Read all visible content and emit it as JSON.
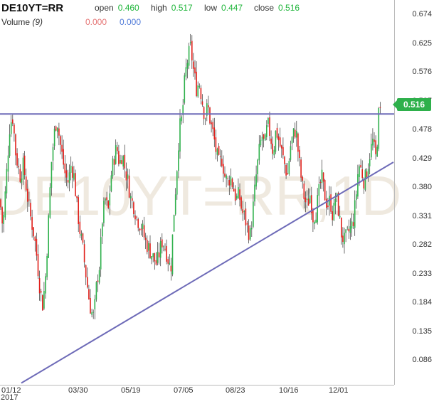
{
  "header": {
    "ticker": "DE10YT=RR",
    "open_label": "open",
    "open_value": "0.460",
    "high_label": "high",
    "high_value": "0.517",
    "low_label": "low",
    "low_value": "0.447",
    "close_label": "close",
    "close_value": "0.516"
  },
  "volume": {
    "label": "Volume",
    "period": "(9)",
    "value_a": "0.000",
    "value_b": "0.000"
  },
  "watermark": "DE10YT=RR,1D",
  "current_price_tag": "0.516",
  "colors": {
    "up": "#2eb04b",
    "down": "#e0201b",
    "trendline": "#6e6bb8",
    "watermark": "#efe9df"
  },
  "chart_data": {
    "type": "candlestick",
    "title": "DE10YT=RR",
    "y_ticks": [
      "0.674",
      "0.625",
      "0.576",
      "0.527",
      "0.478",
      "0.429",
      "0.380",
      "0.331",
      "0.282",
      "0.233",
      "0.184",
      "0.135",
      "0.086"
    ],
    "x_ticks": [
      "01/12",
      "03/30",
      "05/19",
      "07/05",
      "08/23",
      "10/16",
      "12/01"
    ],
    "x_sub_label": "2017",
    "ylim": [
      0.045,
      0.7
    ],
    "grid": false,
    "ohlc": {
      "open": 0.46,
      "high": 0.517,
      "low": 0.447,
      "close": 0.516
    },
    "price_path": [
      [
        0,
        0.36
      ],
      [
        4,
        0.31
      ],
      [
        9,
        0.4
      ],
      [
        14,
        0.49
      ],
      [
        18,
        0.5
      ],
      [
        22,
        0.44
      ],
      [
        28,
        0.4
      ],
      [
        33,
        0.42
      ],
      [
        38,
        0.37
      ],
      [
        43,
        0.33
      ],
      [
        48,
        0.3
      ],
      [
        52,
        0.26
      ],
      [
        56,
        0.21
      ],
      [
        60,
        0.18
      ],
      [
        64,
        0.23
      ],
      [
        68,
        0.32
      ],
      [
        72,
        0.42
      ],
      [
        76,
        0.47
      ],
      [
        80,
        0.5
      ],
      [
        84,
        0.46
      ],
      [
        88,
        0.43
      ],
      [
        92,
        0.4
      ],
      [
        96,
        0.39
      ],
      [
        100,
        0.42
      ],
      [
        104,
        0.4
      ],
      [
        108,
        0.35
      ],
      [
        112,
        0.31
      ],
      [
        116,
        0.28
      ],
      [
        120,
        0.24
      ],
      [
        124,
        0.2
      ],
      [
        128,
        0.17
      ],
      [
        132,
        0.16
      ],
      [
        136,
        0.22
      ],
      [
        140,
        0.25
      ],
      [
        144,
        0.33
      ],
      [
        148,
        0.36
      ],
      [
        152,
        0.34
      ],
      [
        156,
        0.4
      ],
      [
        160,
        0.43
      ],
      [
        164,
        0.45
      ],
      [
        168,
        0.42
      ],
      [
        172,
        0.44
      ],
      [
        176,
        0.41
      ],
      [
        180,
        0.39
      ],
      [
        184,
        0.36
      ],
      [
        188,
        0.35
      ],
      [
        192,
        0.33
      ],
      [
        196,
        0.32
      ],
      [
        200,
        0.31
      ],
      [
        204,
        0.29
      ],
      [
        208,
        0.28
      ],
      [
        212,
        0.27
      ],
      [
        216,
        0.26
      ],
      [
        220,
        0.25
      ],
      [
        224,
        0.27
      ],
      [
        228,
        0.29
      ],
      [
        232,
        0.28
      ],
      [
        236,
        0.26
      ],
      [
        240,
        0.24
      ],
      [
        244,
        0.33
      ],
      [
        248,
        0.4
      ],
      [
        252,
        0.48
      ],
      [
        256,
        0.5
      ],
      [
        260,
        0.57
      ],
      [
        264,
        0.6
      ],
      [
        268,
        0.62
      ],
      [
        272,
        0.58
      ],
      [
        276,
        0.55
      ],
      [
        280,
        0.56
      ],
      [
        284,
        0.53
      ],
      [
        288,
        0.5
      ],
      [
        292,
        0.52
      ],
      [
        296,
        0.49
      ],
      [
        300,
        0.47
      ],
      [
        304,
        0.44
      ],
      [
        308,
        0.42
      ],
      [
        312,
        0.43
      ],
      [
        316,
        0.4
      ],
      [
        320,
        0.39
      ],
      [
        324,
        0.4
      ],
      [
        328,
        0.38
      ],
      [
        332,
        0.36
      ],
      [
        336,
        0.37
      ],
      [
        340,
        0.34
      ],
      [
        344,
        0.33
      ],
      [
        348,
        0.31
      ],
      [
        352,
        0.3
      ],
      [
        356,
        0.35
      ],
      [
        360,
        0.4
      ],
      [
        364,
        0.44
      ],
      [
        368,
        0.47
      ],
      [
        372,
        0.45
      ],
      [
        376,
        0.49
      ],
      [
        380,
        0.47
      ],
      [
        384,
        0.44
      ],
      [
        388,
        0.48
      ],
      [
        392,
        0.46
      ],
      [
        396,
        0.44
      ],
      [
        400,
        0.42
      ],
      [
        404,
        0.4
      ],
      [
        408,
        0.45
      ],
      [
        412,
        0.47
      ],
      [
        416,
        0.48
      ],
      [
        420,
        0.43
      ],
      [
        424,
        0.39
      ],
      [
        428,
        0.36
      ],
      [
        432,
        0.35
      ],
      [
        436,
        0.37
      ],
      [
        440,
        0.33
      ],
      [
        444,
        0.34
      ],
      [
        448,
        0.37
      ],
      [
        452,
        0.4
      ],
      [
        456,
        0.37
      ],
      [
        460,
        0.35
      ],
      [
        464,
        0.36
      ],
      [
        468,
        0.33
      ],
      [
        472,
        0.37
      ],
      [
        476,
        0.34
      ],
      [
        480,
        0.3
      ],
      [
        484,
        0.29
      ],
      [
        488,
        0.3
      ],
      [
        492,
        0.31
      ],
      [
        496,
        0.32
      ],
      [
        500,
        0.36
      ],
      [
        504,
        0.42
      ],
      [
        508,
        0.41
      ],
      [
        512,
        0.39
      ],
      [
        516,
        0.41
      ],
      [
        520,
        0.44
      ],
      [
        524,
        0.46
      ],
      [
        528,
        0.43
      ],
      [
        532,
        0.49
      ],
      [
        535,
        0.516
      ]
    ],
    "annotations": [
      {
        "type": "horizontal_line",
        "y": 0.506
      },
      {
        "type": "trendline",
        "from": [
          0.03,
          0.048
        ],
        "to": [
          0.553,
          0.424
        ]
      }
    ]
  }
}
